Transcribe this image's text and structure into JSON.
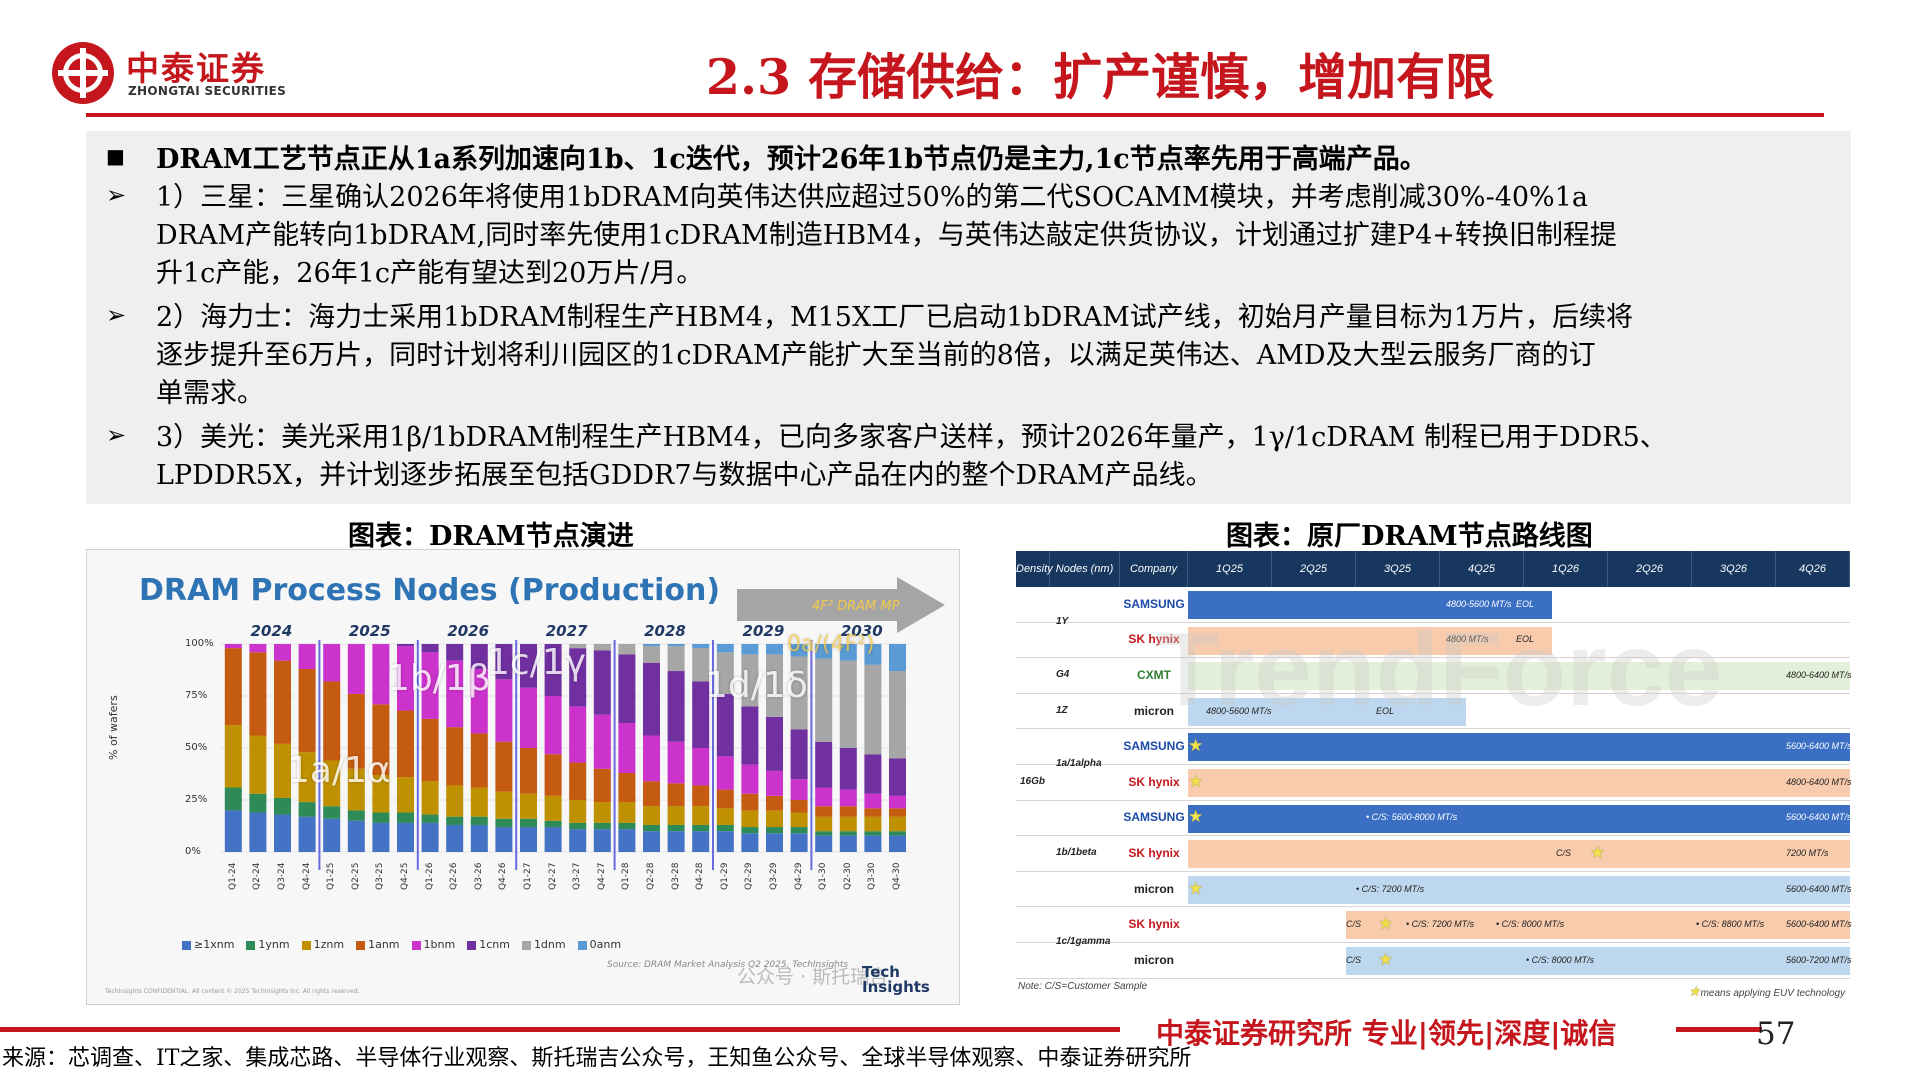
{
  "header": {
    "logo_cn": "中泰证券",
    "logo_en": "ZHONGTAI SECURITIES",
    "title": "2.3 存储供给：扩产谨慎，增加有限"
  },
  "summary": {
    "headline": "DRAM工艺节点正从1a系列加速向1b、1c迭代，预计26年1b节点仍是主力,1c节点率先用于高端产品。",
    "points": [
      {
        "lines": [
          "1）三星：三星确认2026年将使用1bDRAM向英伟达供应超过50%的第二代SOCAMM模块，并考虑削减30%-40%1a",
          "DRAM产能转向1bDRAM,同时率先使用1cDRAM制造HBM4，与英伟达敲定供货协议，计划通过扩建P4+转换旧制程提",
          "升1c产能，26年1c产能有望达到20万片/月。"
        ]
      },
      {
        "lines": [
          "2）海力士：海力士采用1bDRAM制程生产HBM4，M15X工厂已启动1bDRAM试产线，初始月产量目标为1万片，后续将",
          "逐步提升至6万片，同时计划将利川园区的1cDRAM产能扩大至当前的8倍，以满足英伟达、AMD及大型云服务厂商的订",
          "单需求。"
        ]
      },
      {
        "lines": [
          "3）美光：美光采用1β/1bDRAM制程生产HBM4，已向多家客户送样，预计2026年量产，1γ/1cDRAM 制程已用于DDR5、",
          "LPDDR5X，并计划逐步拓展至包括GDDR7与数据中心产品在内的整个DRAM产品线。"
        ]
      }
    ]
  },
  "captions": {
    "left": "图表：DRAM节点演进",
    "right": "图表：原厂DRAM节点路线图"
  },
  "left_chart": {
    "title": "DRAM Process Nodes (Production)",
    "arrow_label": "4F² DRAM MP",
    "y_axis_title": "% of wafers",
    "node_labels": [
      "1a/1α",
      "1b/1β",
      "1c/1γ",
      "1d/1δ",
      "0a/(4F²)"
    ],
    "legend": [
      "≥1xnm",
      "1ynm",
      "1znm",
      "1anm",
      "1bnm",
      "1cnm",
      "1dnm",
      "0anm"
    ],
    "source": "Source: DRAM Market Analysis Q2 2025, TechInsights",
    "confidential": "TechInsights CONFIDENTIAL. All content © 2025 TechInsights Inc. All rights reserved.",
    "brand": [
      "Tech",
      "Insights"
    ],
    "watermark": "公众号 · 斯托瑞吉"
  },
  "chart_data": {
    "type": "bar",
    "stacked": true,
    "title": "DRAM Process Nodes (Production)",
    "ylabel": "% of wafers",
    "ylim": [
      0,
      100
    ],
    "yticks": [
      "0%",
      "25%",
      "50%",
      "75%",
      "100%"
    ],
    "years": [
      "2024",
      "2025",
      "2026",
      "2027",
      "2028",
      "2029",
      "2030"
    ],
    "categories": [
      "Q1-24",
      "Q2-24",
      "Q3-24",
      "Q4-24",
      "Q1-25",
      "Q2-25",
      "Q3-25",
      "Q4-25",
      "Q1-26",
      "Q2-26",
      "Q3-26",
      "Q4-26",
      "Q1-27",
      "Q2-27",
      "Q3-27",
      "Q4-27",
      "Q1-28",
      "Q2-28",
      "Q3-28",
      "Q4-28",
      "Q1-29",
      "Q2-29",
      "Q3-29",
      "Q4-29",
      "Q1-30",
      "Q2-30",
      "Q3-30",
      "Q4-30"
    ],
    "series": [
      {
        "name": "≥1xnm",
        "color": "#4472c4",
        "values": [
          20,
          19,
          18,
          17,
          16,
          15,
          14,
          14,
          14,
          13,
          13,
          12,
          12,
          12,
          11,
          11,
          11,
          10,
          10,
          10,
          10,
          9,
          9,
          9,
          8,
          8,
          8,
          8
        ]
      },
      {
        "name": "1ynm",
        "color": "#2e8b57",
        "values": [
          11,
          9,
          8,
          7,
          6,
          5,
          5,
          5,
          4,
          4,
          4,
          4,
          4,
          3,
          3,
          3,
          3,
          3,
          3,
          3,
          3,
          3,
          3,
          3,
          2,
          2,
          2,
          2
        ]
      },
      {
        "name": "1znm",
        "color": "#bf9000",
        "values": [
          30,
          28,
          26,
          24,
          22,
          20,
          18,
          17,
          16,
          15,
          14,
          13,
          12,
          12,
          11,
          10,
          10,
          9,
          9,
          9,
          8,
          8,
          8,
          7,
          7,
          7,
          7,
          7
        ]
      },
      {
        "name": "1anm",
        "color": "#c55a11",
        "values": [
          37,
          40,
          40,
          40,
          38,
          36,
          34,
          32,
          30,
          28,
          26,
          24,
          22,
          20,
          18,
          16,
          14,
          12,
          11,
          10,
          9,
          8,
          7,
          6,
          5,
          5,
          4,
          4
        ]
      },
      {
        "name": "1bnm",
        "color": "#cc33cc",
        "values": [
          2,
          4,
          8,
          12,
          18,
          24,
          29,
          31,
          32,
          32,
          31,
          30,
          29,
          28,
          27,
          26,
          24,
          22,
          20,
          18,
          16,
          14,
          12,
          10,
          9,
          8,
          7,
          6
        ]
      },
      {
        "name": "1cnm",
        "color": "#7030a0",
        "values": [
          0,
          0,
          0,
          0,
          0,
          0,
          0,
          1,
          4,
          8,
          12,
          17,
          21,
          25,
          28,
          31,
          33,
          35,
          34,
          32,
          30,
          28,
          26,
          24,
          22,
          20,
          19,
          18
        ]
      },
      {
        "name": "1dnm",
        "color": "#a6a6a6",
        "values": [
          0,
          0,
          0,
          0,
          0,
          0,
          0,
          0,
          0,
          0,
          0,
          0,
          0,
          0,
          2,
          3,
          5,
          8,
          12,
          16,
          20,
          25,
          30,
          35,
          40,
          42,
          43,
          42
        ]
      },
      {
        "name": "0anm",
        "color": "#5b9bd5",
        "values": [
          0,
          0,
          0,
          0,
          0,
          0,
          0,
          0,
          0,
          0,
          0,
          0,
          0,
          0,
          0,
          0,
          0,
          1,
          1,
          2,
          4,
          5,
          5,
          6,
          7,
          8,
          10,
          13
        ]
      }
    ]
  },
  "right_chart": {
    "headers": [
      "Density",
      "Nodes (nm)",
      "Company",
      "1Q25",
      "2Q25",
      "3Q25",
      "4Q25",
      "1Q26",
      "2Q26",
      "3Q26",
      "4Q26"
    ],
    "density": "16Gb",
    "note": "Note: C/S=Customer Sample",
    "euv_note": "means applying EUV technology",
    "watermark": "TrendForce",
    "rows": [
      {
        "node": "1Y",
        "company": "SAMSUNG",
        "band_color": "#3a6fc4",
        "texts": [
          "4800-5600 MT/s",
          "EOL"
        ]
      },
      {
        "node": "",
        "company": "SK hynix",
        "band_color": "#f8cbad",
        "texts": [
          "4800 MT/s",
          "EOL"
        ]
      },
      {
        "node": "G4",
        "company": "CXMT",
        "band_color": "#e2f0d9",
        "texts": [
          "4800-6400 MT/s"
        ]
      },
      {
        "node": "1Z",
        "company": "micron",
        "band_color": "#bdd7ee",
        "texts": [
          "4800-5600 MT/s",
          "EOL"
        ]
      },
      {
        "node": "1a/1alpha",
        "company": "SAMSUNG",
        "band_color": "#3a6fc4",
        "texts": [
          "5600-6400 MT/s"
        ]
      },
      {
        "node": "",
        "company": "SK hynix",
        "band_color": "#f8cbad",
        "texts": [
          "4800-6400 MT/s"
        ]
      },
      {
        "node": "1b/1beta",
        "company": "SAMSUNG",
        "band_color": "#3a6fc4",
        "texts": [
          "• C/S: 5600-8000 MT/s",
          "5600-6400 MT/s"
        ]
      },
      {
        "node": "",
        "company": "SK hynix",
        "band_color": "#f8cbad",
        "texts": [
          "C/S",
          "7200 MT/s"
        ]
      },
      {
        "node": "",
        "company": "micron",
        "band_color": "#bdd7ee",
        "texts": [
          "• C/S: 7200 MT/s",
          "5600-6400 MT/s"
        ]
      },
      {
        "node": "1c/1gamma",
        "company": "SK hynix",
        "band_color": "#f8cbad",
        "texts": [
          "C/S",
          "• C/S: 7200 MT/s",
          "• C/S: 8000 MT/s",
          "• C/S: 8800 MT/s",
          "5600-6400 MT/s"
        ]
      },
      {
        "node": "",
        "company": "micron",
        "band_color": "#bdd7ee",
        "texts": [
          "C/S",
          "• C/S: 8000 MT/s",
          "5600-7200 MT/s"
        ]
      }
    ]
  },
  "footer": {
    "slogan": "中泰证券研究所 专业|领先|深度|诚信",
    "page": "57",
    "source": "来源：芯调查、IT之家、集成芯路、半导体行业观察、斯托瑞吉公众号，王知鱼公众号、全球半导体观察、中泰证券研究所"
  }
}
